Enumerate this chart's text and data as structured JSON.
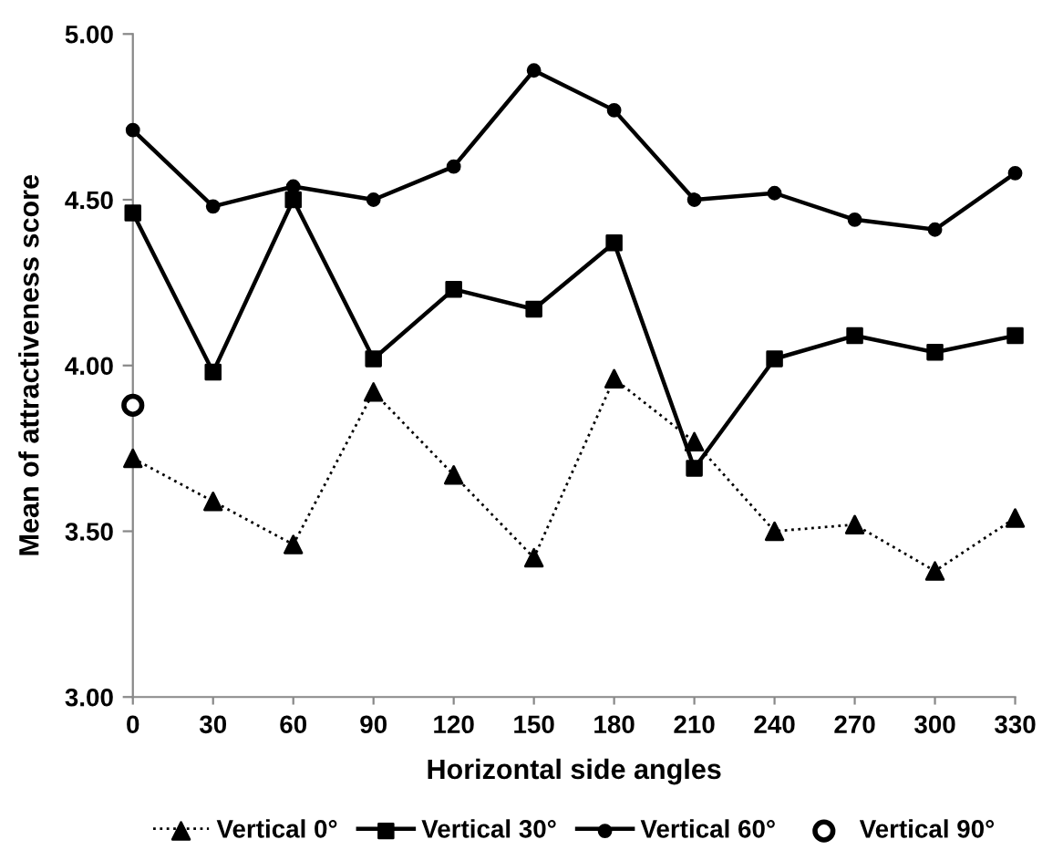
{
  "chart_data": {
    "type": "line",
    "xlabel": "Horizontal side angles",
    "ylabel": "Mean of attractiveness score",
    "x": [
      0,
      30,
      60,
      90,
      120,
      150,
      180,
      210,
      240,
      270,
      300,
      330
    ],
    "xlim": [
      0,
      330
    ],
    "xticks": [
      0,
      30,
      60,
      90,
      120,
      150,
      180,
      210,
      240,
      270,
      300,
      330
    ],
    "ylim": [
      3,
      5
    ],
    "yticks": [
      {
        "value": 3,
        "label": "3.00"
      },
      {
        "value": 3.5,
        "label": "3.50"
      },
      {
        "value": 4,
        "label": "4.00"
      },
      {
        "value": 4.5,
        "label": "4.50"
      },
      {
        "value": 5,
        "label": "5.00"
      }
    ],
    "grid": false,
    "legend": "bottom",
    "series": [
      {
        "name": "Vertical 0°",
        "color": "#000000",
        "marker": "triangle",
        "line_style": "dotted",
        "values": [
          3.72,
          3.59,
          3.46,
          3.92,
          3.67,
          3.42,
          3.96,
          3.77,
          3.5,
          3.52,
          3.38,
          3.54
        ]
      },
      {
        "name": "Vertical 30°",
        "color": "#000000",
        "marker": "square",
        "line_style": "solid",
        "values": [
          4.46,
          3.98,
          4.5,
          4.02,
          4.23,
          4.17,
          4.37,
          3.69,
          4.02,
          4.09,
          4.04,
          4.09
        ]
      },
      {
        "name": "Vertical 60°",
        "color": "#000000",
        "marker": "circle",
        "line_style": "solid",
        "values": [
          4.71,
          4.48,
          4.54,
          4.5,
          4.6,
          4.89,
          4.77,
          4.5,
          4.52,
          4.44,
          4.41,
          4.58
        ]
      },
      {
        "name": "Vertical 90°",
        "type": "scatter",
        "color": "#000000",
        "marker": "circle",
        "x": [
          0
        ],
        "values": [
          3.88
        ]
      }
    ]
  }
}
